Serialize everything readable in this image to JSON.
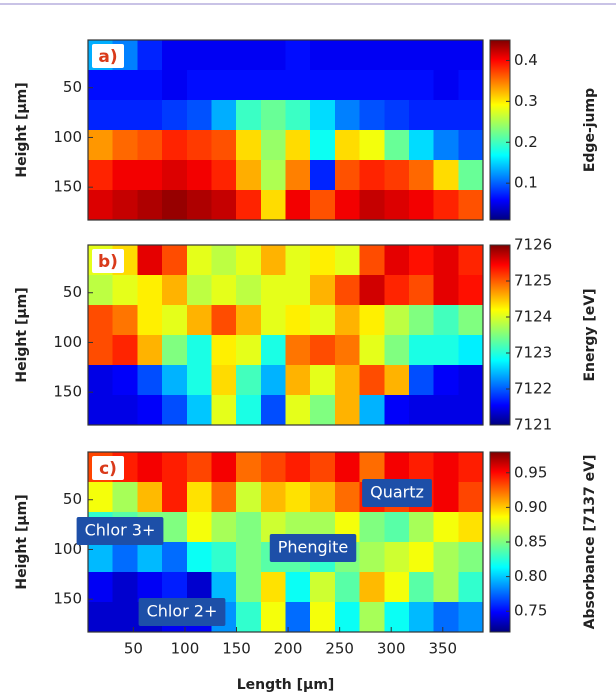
{
  "chart_data": [
    {
      "type": "heatmap",
      "panel_label": "a)",
      "ylabel": "Height [μm]",
      "colorbar_label": "Edge-jump",
      "xlim": [
        6,
        389
      ],
      "ylim": [
        2,
        183
      ],
      "y_inverted": true,
      "yticks": [
        50,
        100,
        150
      ],
      "clim": [
        0.01,
        0.45
      ],
      "cticks": [
        0.1,
        0.2,
        0.3,
        0.4
      ],
      "colormap": "jet",
      "values": [
        [
          0.14,
          0.12,
          0.08,
          0.06,
          0.06,
          0.06,
          0.06,
          0.06,
          0.07,
          0.06,
          0.06,
          0.06,
          0.06,
          0.06,
          0.06,
          0.06
        ],
        [
          0.07,
          0.07,
          0.07,
          0.06,
          0.07,
          0.07,
          0.07,
          0.07,
          0.07,
          0.07,
          0.07,
          0.07,
          0.07,
          0.07,
          0.06,
          0.07
        ],
        [
          0.08,
          0.08,
          0.08,
          0.09,
          0.1,
          0.14,
          0.2,
          0.22,
          0.2,
          0.16,
          0.12,
          0.1,
          0.09,
          0.08,
          0.08,
          0.08
        ],
        [
          0.33,
          0.35,
          0.36,
          0.38,
          0.37,
          0.36,
          0.3,
          0.24,
          0.3,
          0.18,
          0.3,
          0.28,
          0.22,
          0.16,
          0.12,
          0.1
        ],
        [
          0.38,
          0.4,
          0.4,
          0.41,
          0.4,
          0.38,
          0.32,
          0.25,
          0.34,
          0.08,
          0.36,
          0.38,
          0.37,
          0.35,
          0.3,
          0.22
        ],
        [
          0.41,
          0.42,
          0.43,
          0.44,
          0.43,
          0.42,
          0.38,
          0.3,
          0.4,
          0.36,
          0.4,
          0.42,
          0.41,
          0.4,
          0.38,
          0.36
        ]
      ]
    },
    {
      "type": "heatmap",
      "panel_label": "b)",
      "ylabel": "Height [μm]",
      "colorbar_label": "Energy [eV]",
      "xlim": [
        6,
        389
      ],
      "ylim": [
        2,
        183
      ],
      "y_inverted": true,
      "yticks": [
        50,
        100,
        150
      ],
      "clim": [
        7121,
        7126
      ],
      "cticks": [
        7121,
        7122,
        7123,
        7124,
        7125,
        7126
      ],
      "colormap": "jet",
      "values": [
        [
          7124,
          7124.3,
          7125.5,
          7125,
          7124,
          7123.8,
          7124,
          7124.5,
          7124,
          7124.2,
          7124,
          7125,
          7125.5,
          7125.3,
          7125.5,
          7125.2
        ],
        [
          7123.8,
          7124,
          7124.2,
          7124.5,
          7123.8,
          7124,
          7123.8,
          7124,
          7124,
          7124.5,
          7125,
          7125.6,
          7125.2,
          7125,
          7125.5,
          7125.3
        ],
        [
          7125,
          7124.8,
          7124.2,
          7124,
          7124.5,
          7125,
          7124.5,
          7124,
          7124.2,
          7124,
          7124.5,
          7124.2,
          7123.8,
          7123.5,
          7123.2,
          7123.5
        ],
        [
          7125,
          7125.2,
          7124.5,
          7123.5,
          7123,
          7124.2,
          7124,
          7123,
          7124.8,
          7125,
          7124.8,
          7124,
          7123.5,
          7123,
          7123,
          7122.8
        ],
        [
          7121.5,
          7121.6,
          7122,
          7122.5,
          7123,
          7124.3,
          7123.2,
          7122.5,
          7124.5,
          7124,
          7124.5,
          7125,
          7124.5,
          7122,
          7121.6,
          7121.5
        ],
        [
          7121.5,
          7121.5,
          7121.6,
          7122,
          7122.6,
          7124,
          7123,
          7122,
          7124,
          7123.5,
          7124.5,
          7122.5,
          7121.6,
          7121.5,
          7121.5,
          7121.5
        ]
      ]
    },
    {
      "type": "heatmap",
      "panel_label": "c)",
      "ylabel": "Height [μm]",
      "colorbar_label": "Absorbance [7137 eV]",
      "xlabel": "Length [μm]",
      "xlim": [
        6,
        389
      ],
      "xticks": [
        50,
        100,
        150,
        200,
        250,
        300,
        350
      ],
      "ylim": [
        2,
        183
      ],
      "y_inverted": true,
      "yticks": [
        50,
        100,
        150
      ],
      "clim": [
        0.72,
        0.98
      ],
      "cticks": [
        0.75,
        {
          "value": 0.8,
          "label": "0.80"
        },
        0.85,
        {
          "value": 0.9,
          "label": "0.90"
        },
        0.95
      ],
      "colormap": "jet",
      "annotations": [
        "Quartz",
        "Chlor 3+",
        "Phengite",
        "Chlor 2+"
      ],
      "values": [
        [
          0.93,
          0.94,
          0.95,
          0.94,
          0.93,
          0.95,
          0.92,
          0.93,
          0.94,
          0.93,
          0.95,
          0.92,
          0.95,
          0.94,
          0.95,
          0.94
        ],
        [
          0.88,
          0.86,
          0.9,
          0.94,
          0.89,
          0.92,
          0.87,
          0.9,
          0.89,
          0.9,
          0.92,
          0.94,
          0.93,
          0.94,
          0.95,
          0.93
        ],
        [
          0.83,
          0.84,
          0.85,
          0.85,
          0.88,
          0.86,
          0.85,
          0.87,
          0.86,
          0.86,
          0.88,
          0.85,
          0.84,
          0.86,
          0.88,
          0.89
        ],
        [
          0.8,
          0.78,
          0.8,
          0.78,
          0.82,
          0.83,
          0.85,
          0.84,
          0.84,
          0.83,
          0.85,
          0.86,
          0.87,
          0.88,
          0.86,
          0.85
        ],
        [
          0.75,
          0.74,
          0.75,
          0.76,
          0.74,
          0.8,
          0.85,
          0.89,
          0.82,
          0.87,
          0.84,
          0.9,
          0.88,
          0.84,
          0.86,
          0.83
        ],
        [
          0.74,
          0.74,
          0.74,
          0.75,
          0.75,
          0.79,
          0.83,
          0.88,
          0.78,
          0.88,
          0.82,
          0.86,
          0.82,
          0.8,
          0.78,
          0.79
        ]
      ]
    }
  ]
}
